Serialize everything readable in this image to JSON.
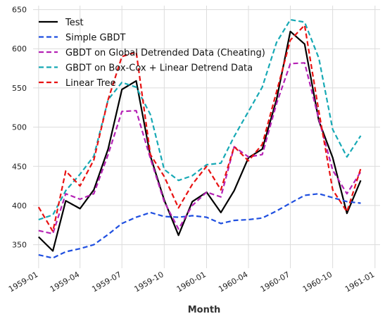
{
  "chart_data": {
    "type": "line",
    "xlabel": "Month",
    "ylabel": "",
    "ylim": [
      320,
      655
    ],
    "xlim": [
      "1958-12-20",
      "1961-01-12"
    ],
    "grid": true,
    "legend_position": "top-left",
    "x_ticks": [
      "1959-01",
      "1959-04",
      "1959-07",
      "1959-10",
      "1960-01",
      "1960-04",
      "1960-07",
      "1960-10",
      "1961-01"
    ],
    "y_ticks": [
      350,
      400,
      450,
      500,
      550,
      600,
      650
    ],
    "y_tick_labels": [
      "350",
      "400",
      "450",
      "500",
      "550",
      "600",
      "650"
    ],
    "x": [
      "1959-01",
      "1959-02",
      "1959-03",
      "1959-04",
      "1959-05",
      "1959-06",
      "1959-07",
      "1959-08",
      "1959-09",
      "1959-10",
      "1959-11",
      "1959-12",
      "1960-01",
      "1960-02",
      "1960-03",
      "1960-04",
      "1960-05",
      "1960-06",
      "1960-07",
      "1960-08",
      "1960-09",
      "1960-10",
      "1960-11",
      "1960-12"
    ],
    "series": [
      {
        "name": "Test",
        "color": "#000000",
        "dash": "solid",
        "values": [
          360,
          342,
          406,
          396,
          420,
          472,
          548,
          559,
          463,
          407,
          362,
          405,
          417,
          391,
          419,
          461,
          472,
          535,
          622,
          606,
          508,
          461,
          390,
          432
        ]
      },
      {
        "name": "Simple GBDT",
        "color": "#1f4fe0",
        "dash": "dashed",
        "values": [
          337,
          333,
          341,
          345,
          350,
          363,
          377,
          385,
          391,
          386,
          385,
          387,
          385,
          377,
          381,
          382,
          384,
          393,
          403,
          413,
          415,
          410,
          405,
          403
        ]
      },
      {
        "name": "GBDT on Global Detrended Data (Cheating)",
        "color": "#b522b5",
        "dash": "dashed",
        "values": [
          368,
          364,
          415,
          408,
          415,
          465,
          520,
          521,
          460,
          405,
          370,
          400,
          417,
          411,
          475,
          462,
          465,
          530,
          581,
          582,
          510,
          445,
          415,
          443
        ]
      },
      {
        "name": "GBDT on Box-Cox + Linear Detrend Data",
        "color": "#17a9b5",
        "dash": "dashed",
        "values": [
          382,
          388,
          419,
          440,
          463,
          535,
          557,
          551,
          516,
          446,
          432,
          438,
          452,
          454,
          488,
          520,
          551,
          608,
          637,
          634,
          588,
          497,
          462,
          489
        ]
      },
      {
        "name": "Linear Tree",
        "color": "#e81212",
        "dash": "dashed",
        "values": [
          398,
          367,
          444,
          425,
          458,
          535,
          590,
          596,
          465,
          437,
          397,
          427,
          450,
          420,
          475,
          457,
          478,
          545,
          611,
          630,
          520,
          420,
          392,
          447
        ]
      }
    ]
  }
}
